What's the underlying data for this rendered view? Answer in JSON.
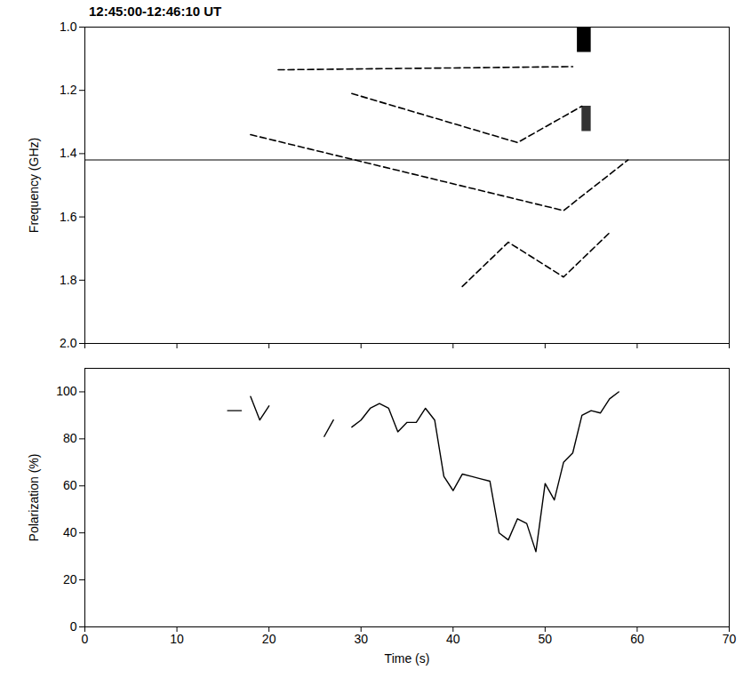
{
  "chart_data": [
    {
      "type": "line",
      "title": "12:45:00-12:46:10 UT",
      "ylabel": "Frequency (GHz)",
      "xlim": [
        0,
        70
      ],
      "xticks": [
        0,
        10,
        20,
        30,
        40,
        50,
        60,
        70
      ],
      "ylim": [
        1,
        2
      ],
      "yticks": [
        {
          "value": 1,
          "label": "1.0"
        },
        {
          "value": 1.2,
          "label": "1.2"
        },
        {
          "value": 1.4,
          "label": "1.4"
        },
        {
          "value": 1.6,
          "label": "1.6"
        },
        {
          "value": 1.8,
          "label": "1.8"
        },
        {
          "value": 2,
          "label": "2.0"
        }
      ],
      "tick_labels": "y",
      "lines": [
        {
          "x": [
            21,
            53
          ],
          "values": [
            1.135,
            1.125
          ],
          "line_style": "dashed",
          "color": "#000000"
        },
        {
          "x": [
            29,
            47,
            54
          ],
          "values": [
            1.21,
            1.365,
            1.25
          ],
          "line_style": "dashed",
          "color": "#000000"
        },
        {
          "x": [
            18,
            52,
            59
          ],
          "values": [
            1.34,
            1.58,
            1.42
          ],
          "line_style": "dashed",
          "color": "#000000"
        },
        {
          "x": [
            41,
            46,
            52,
            57
          ],
          "values": [
            1.82,
            1.68,
            1.79,
            1.65
          ],
          "line_style": "dashed",
          "color": "#000000"
        }
      ],
      "reference_line": {
        "value": 1.42,
        "line_style": "solid",
        "color": "#000000"
      },
      "bursts": [
        {
          "x1": 53.5,
          "x2": 55,
          "y1": 1.0,
          "y2": 1.08,
          "color": "#000000"
        },
        {
          "x1": 54,
          "x2": 55,
          "y1": 1.25,
          "y2": 1.33,
          "color": "#333333"
        }
      ]
    },
    {
      "type": "line",
      "xlabel": "Time (s)",
      "ylabel": "Polarization (%)",
      "xlim": [
        0,
        70
      ],
      "xticks": [
        0,
        10,
        20,
        30,
        40,
        50,
        60,
        70
      ],
      "ylim": [
        0,
        110
      ],
      "yticks": [
        0,
        20,
        40,
        60,
        80,
        100
      ],
      "color": "#000000",
      "line_style": "solid",
      "x": [
        15.5,
        17,
        17.5,
        18,
        19,
        20,
        23,
        26,
        27,
        28,
        29,
        30,
        31,
        32,
        33,
        34,
        35,
        36,
        37,
        38,
        39,
        40,
        41,
        42,
        43,
        44,
        45,
        46,
        47,
        48,
        49,
        50,
        51,
        52,
        53,
        54,
        55,
        56,
        57,
        58
      ],
      "values": [
        92,
        92,
        null,
        98,
        88,
        94,
        null,
        81,
        88,
        null,
        85,
        88,
        93,
        95,
        93,
        83,
        87,
        87,
        93,
        88,
        64,
        58,
        65,
        64,
        63,
        62,
        40,
        37,
        46,
        44,
        32,
        61,
        54,
        70,
        74,
        90,
        92,
        91,
        97,
        100
      ]
    }
  ]
}
